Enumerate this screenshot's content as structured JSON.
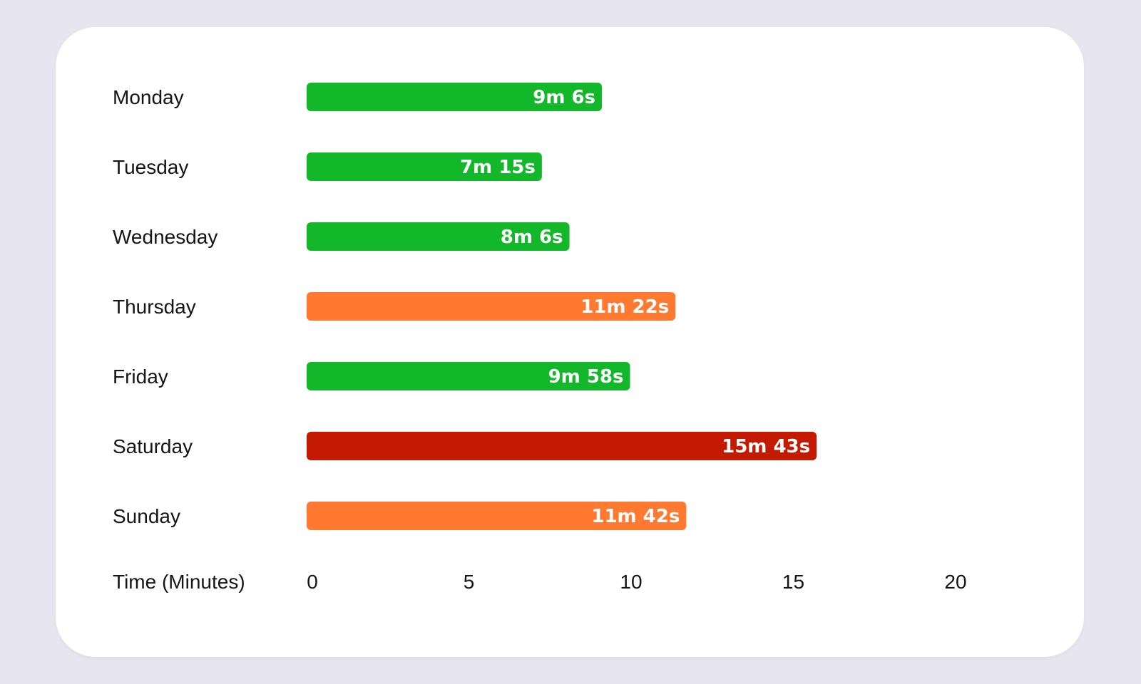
{
  "chart_data": {
    "type": "bar",
    "orientation": "horizontal",
    "categories": [
      "Monday",
      "Tuesday",
      "Wednesday",
      "Thursday",
      "Friday",
      "Saturday",
      "Sunday"
    ],
    "values": [
      9.1,
      7.25,
      8.1,
      11.3667,
      9.9667,
      15.7167,
      11.7
    ],
    "data_labels": [
      "9m 6s",
      "7m 15s",
      "8m 6s",
      "11m 22s",
      "9m 58s",
      "15m 43s",
      "11m 42s"
    ],
    "bar_colors": [
      "#13b82a",
      "#13b82a",
      "#13b82a",
      "#ff7a30",
      "#13b82a",
      "#c41a02",
      "#ff7a30"
    ],
    "xlabel": "Time (Minutes)",
    "x_ticks": [
      0,
      5,
      10,
      15,
      20
    ],
    "xlim": [
      0,
      20
    ],
    "grid": false,
    "legend": "none"
  },
  "colors": {
    "background": "#e6e5f0",
    "card": "#ffffff",
    "good": "#13b82a",
    "warning": "#ff7a30",
    "bad": "#c41a02",
    "text": "#151515"
  }
}
